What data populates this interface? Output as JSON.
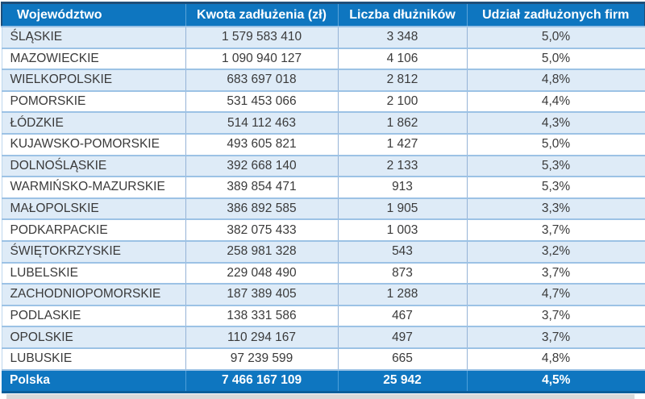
{
  "chart_data": {
    "type": "table",
    "columns": [
      "Województwo",
      "Kwota zadłużenia (zł)",
      "Liczba dłużników",
      "Udział zadłużonych firm"
    ],
    "rows": [
      {
        "voivodeship": "ŚLĄSKIE",
        "debt_amount": "1 579 583 410",
        "debtors": "3 348",
        "share": "5,0%"
      },
      {
        "voivodeship": "MAZOWIECKIE",
        "debt_amount": "1 090 940 127",
        "debtors": "4 106",
        "share": "5,0%"
      },
      {
        "voivodeship": "WIELKOPOLSKIE",
        "debt_amount": "683 697 018",
        "debtors": "2 812",
        "share": "4,8%"
      },
      {
        "voivodeship": "POMORSKIE",
        "debt_amount": "531 453 066",
        "debtors": "2 100",
        "share": "4,4%"
      },
      {
        "voivodeship": "ŁÓDZKIE",
        "debt_amount": "514 112 463",
        "debtors": "1 862",
        "share": "4,3%"
      },
      {
        "voivodeship": "KUJAWSKO-POMORSKIE",
        "debt_amount": "493 605 821",
        "debtors": "1 427",
        "share": "5,0%"
      },
      {
        "voivodeship": "DOLNOŚLĄSKIE",
        "debt_amount": "392 668 140",
        "debtors": "2 133",
        "share": "5,3%"
      },
      {
        "voivodeship": "WARMIŃSKO-MAZURSKIE",
        "debt_amount": "389 854 471",
        "debtors": "913",
        "share": "5,3%"
      },
      {
        "voivodeship": "MAŁOPOLSKIE",
        "debt_amount": "386 892 585",
        "debtors": "1 905",
        "share": "3,3%"
      },
      {
        "voivodeship": "PODKARPACKIE",
        "debt_amount": "382 075 433",
        "debtors": "1 003",
        "share": "3,7%"
      },
      {
        "voivodeship": "ŚWIĘTOKRZYSKIE",
        "debt_amount": "258 981 328",
        "debtors": "543",
        "share": "3,2%"
      },
      {
        "voivodeship": "LUBELSKIE",
        "debt_amount": "229 048 490",
        "debtors": "873",
        "share": "3,7%"
      },
      {
        "voivodeship": "ZACHODNIOPOMORSKIE",
        "debt_amount": "187 389 405",
        "debtors": "1 288",
        "share": "4,7%"
      },
      {
        "voivodeship": "PODLASKIE",
        "debt_amount": "138 331 586",
        "debtors": "467",
        "share": "3,7%"
      },
      {
        "voivodeship": "OPOLSKIE",
        "debt_amount": "110 294 167",
        "debtors": "497",
        "share": "3,7%"
      },
      {
        "voivodeship": "LUBUSKIE",
        "debt_amount": "97 239 599",
        "debtors": "665",
        "share": "4,8%"
      }
    ],
    "total_row": {
      "voivodeship": "Polska",
      "debt_amount": "7 466 167 109",
      "debtors": "25 942",
      "share": "4,5%"
    }
  },
  "colors": {
    "header_bg": "#0E76C0",
    "header_text": "#FFFFFF",
    "navy_outline": "#1F4E79",
    "shaded_row_bg": "#DEEBF7",
    "white_row_bg": "#FFFFFF",
    "grid_line": "#9CC2E5",
    "vertical_line": "#95B3D7",
    "body_text": "#3A3A3A",
    "shadow_strip": "#D9D9D9"
  }
}
